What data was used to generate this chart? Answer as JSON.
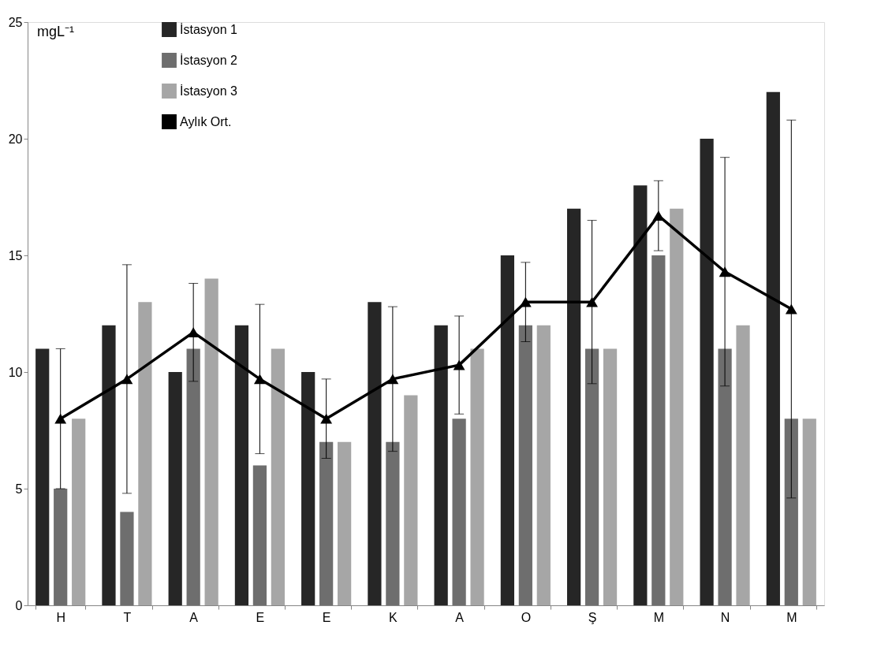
{
  "chart_data": {
    "type": "bar",
    "ylabel": "mgL⁻¹",
    "categories": [
      "H",
      "T",
      "A",
      "E",
      "E",
      "K",
      "A",
      "O",
      "Ş",
      "M",
      "N",
      "M"
    ],
    "series": [
      {
        "name": "İstasyon 1",
        "color": "#262626",
        "values": [
          11,
          12,
          10,
          12,
          10,
          13,
          12,
          15,
          17,
          18,
          20,
          22
        ]
      },
      {
        "name": "İstasyon 2",
        "color": "#6e6e6e",
        "values": [
          5,
          4,
          11,
          6,
          7,
          7,
          8,
          12,
          11,
          15,
          11,
          8
        ]
      },
      {
        "name": "İstasyon 3",
        "color": "#a6a6a6",
        "values": [
          8,
          13,
          14,
          11,
          7,
          9,
          11,
          12,
          11,
          17,
          12,
          8
        ]
      },
      {
        "name": "Aylık Ort.",
        "type": "line",
        "color": "#000000",
        "marker": "triangle",
        "values": [
          8,
          9.7,
          11.7,
          9.7,
          8,
          9.7,
          10.3,
          13,
          13,
          16.7,
          14.3,
          12.7
        ],
        "errors": [
          3,
          4.9,
          2.1,
          3.2,
          1.7,
          3.1,
          2.1,
          1.7,
          3.5,
          1.5,
          4.9,
          8.1
        ]
      }
    ],
    "ylim": [
      0,
      25
    ],
    "yticks": [
      0,
      5,
      10,
      15,
      20,
      25
    ],
    "grid": false,
    "legend": "top left"
  }
}
